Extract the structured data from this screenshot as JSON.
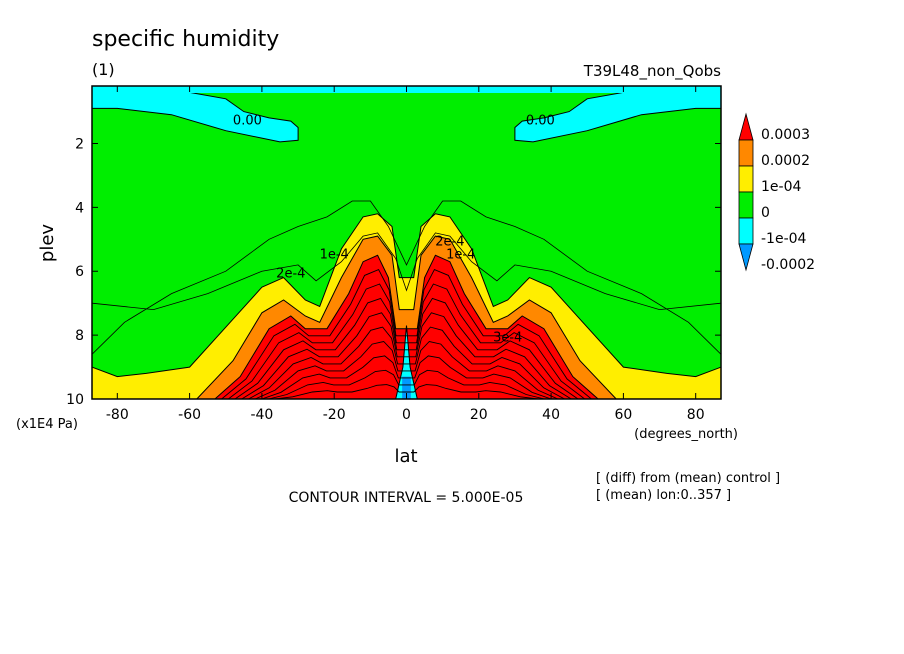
{
  "chart_data": {
    "type": "heatmap",
    "title": "specific humidity",
    "subtitle": "(1)",
    "run_label": "T39L48_non_Qobs",
    "xlabel": "lat",
    "x_units": "(degrees_north)",
    "ylabel": "plev",
    "y_units": "(x1E4 Pa)",
    "xlim": [
      -87,
      87
    ],
    "ylim": [
      10,
      0.2
    ],
    "x_ticks": [
      -80,
      -60,
      -40,
      -20,
      0,
      20,
      40,
      60,
      80
    ],
    "x_tick_labels": [
      "-80",
      "-60",
      "-40",
      "-20",
      "0",
      "20",
      "40",
      "60",
      "80"
    ],
    "y_ticks": [
      2,
      4,
      6,
      8,
      10
    ],
    "y_tick_labels": [
      "2",
      "4",
      "6",
      "8",
      "10"
    ],
    "legend": {
      "placement": "right",
      "levels": [
        "0.0003",
        "0.0002",
        "1e-04",
        "0",
        "-1e-04",
        "-0.0002"
      ],
      "colors": [
        "#ff0000",
        "#ff8800",
        "#ffee00",
        "#00ee00",
        "#00ffff",
        "#0099ff"
      ]
    },
    "contour_interval_text": "CONTOUR INTERVAL = 5.000E-05",
    "notes": [
      "[ (diff) from (mean) control ]",
      "[ (mean) lon:0..357 ]"
    ],
    "contour_labels": [
      "0.00",
      "0.00",
      "1e-4",
      "1e-4",
      "2e-4",
      "2e-4",
      "3e-4"
    ],
    "bands": {
      "green_top": {
        "lat": [
          -87,
          -70,
          -55,
          -40,
          -30,
          -25,
          -18,
          -12,
          -8,
          -3,
          0,
          3,
          8,
          12,
          18,
          25,
          30,
          40,
          55,
          70,
          87
        ],
        "plev": [
          7.0,
          7.2,
          6.7,
          6.0,
          5.8,
          6.3,
          5.7,
          4.9,
          4.8,
          5.6,
          6.6,
          5.6,
          4.8,
          4.9,
          5.7,
          6.3,
          5.8,
          6.0,
          6.7,
          7.2,
          7.0
        ]
      },
      "yellow_top": {
        "lat": [
          -87,
          -80,
          -72,
          -60,
          -48,
          -40,
          -34,
          -28,
          -24,
          -18,
          -12,
          -8,
          -4,
          -2,
          2,
          4,
          8,
          12,
          18,
          24,
          28,
          34,
          40,
          48,
          60,
          72,
          80,
          87
        ],
        "plev": [
          9.0,
          9.3,
          9.2,
          9.0,
          7.5,
          6.5,
          6.2,
          6.9,
          7.1,
          5.3,
          4.3,
          4.2,
          4.6,
          6.2,
          6.2,
          4.6,
          4.2,
          4.3,
          5.3,
          7.1,
          6.9,
          6.2,
          6.5,
          7.5,
          9.0,
          9.2,
          9.3,
          9.0
        ]
      },
      "orange_top": {
        "lat": [
          -58,
          -48,
          -40,
          -34,
          -28,
          -24,
          -18,
          -12,
          -8,
          -4,
          -2,
          2,
          4,
          8,
          12,
          18,
          24,
          28,
          34,
          40,
          48,
          58
        ],
        "plev": [
          10,
          8.8,
          7.3,
          6.9,
          7.4,
          7.6,
          6.2,
          5.0,
          4.9,
          5.5,
          7.2,
          7.2,
          5.5,
          4.9,
          5.0,
          6.2,
          7.6,
          7.4,
          6.9,
          7.3,
          8.8,
          10
        ]
      },
      "red_top": {
        "lat": [
          -53,
          -46,
          -38,
          -32,
          -28,
          -22,
          -16,
          -12,
          -8,
          -5,
          -3,
          3,
          5,
          8,
          12,
          16,
          22,
          28,
          32,
          38,
          46,
          53
        ],
        "plev": [
          10,
          9.3,
          7.8,
          7.4,
          7.8,
          7.8,
          6.7,
          5.7,
          5.5,
          6.2,
          7.8,
          7.8,
          6.2,
          5.5,
          5.7,
          6.7,
          7.8,
          7.8,
          7.4,
          7.8,
          9.3,
          10
        ]
      },
      "cyan_bottom": {
        "lat": [
          -3,
          -1,
          0,
          1,
          3
        ],
        "plev": [
          10,
          9.0,
          7.7,
          9.0,
          10
        ]
      },
      "cyan_top_left": {
        "lat": [
          -87,
          -70,
          -60,
          -50,
          -45,
          -38,
          -32,
          -30,
          -30,
          -35,
          -50,
          -65,
          -80,
          -87
        ],
        "plev": [
          0.2,
          0.3,
          0.4,
          0.6,
          1.0,
          1.2,
          1.3,
          1.5,
          1.9,
          1.95,
          1.6,
          1.1,
          0.9,
          0.9
        ]
      },
      "cyan_top_right": {
        "lat": [
          30,
          30,
          32,
          38,
          45,
          50,
          60,
          70,
          87,
          87,
          80,
          65,
          50,
          35
        ],
        "plev": [
          1.9,
          1.5,
          1.3,
          1.2,
          1.0,
          0.6,
          0.4,
          0.3,
          0.2,
          0.9,
          0.9,
          1.1,
          1.6,
          1.95
        ]
      },
      "outer_contour": {
        "lat": [
          -87,
          -78,
          -65,
          -50,
          -38,
          -30,
          -22,
          -15,
          -10,
          -5,
          0,
          5,
          10,
          15,
          22,
          30,
          38,
          50,
          65,
          78,
          87
        ],
        "plev": [
          8.6,
          7.6,
          6.7,
          6.0,
          5.0,
          4.6,
          4.3,
          3.8,
          3.8,
          4.6,
          5.8,
          4.6,
          3.8,
          3.8,
          4.3,
          4.6,
          5.0,
          6.0,
          6.7,
          7.6,
          8.6
        ]
      }
    }
  }
}
